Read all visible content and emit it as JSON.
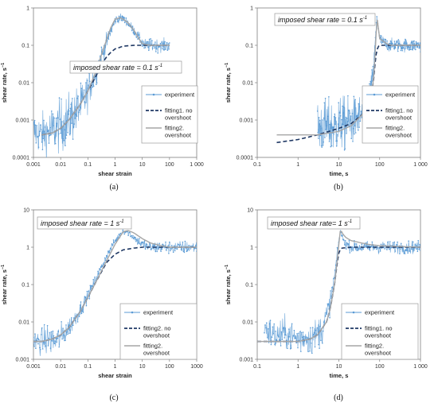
{
  "colors": {
    "experiment": "#5b9bd5",
    "fitting1": "#1f3864",
    "fitting2": "#a6a6a6"
  },
  "chart_data": [
    {
      "type": "line",
      "panel": "(a)",
      "xlabel": "shear strain",
      "ylabel": "shear rate, s",
      "ylabel_sup": "−1",
      "xscale": "log",
      "yscale": "log",
      "xlim": [
        0.001,
        1000
      ],
      "ylim": [
        0.0001,
        1
      ],
      "xticks": [
        "0.001",
        "0.01",
        "0.1",
        "1",
        "10",
        "100",
        "1 000"
      ],
      "yticks": [
        "0.0001",
        "0.001",
        "0.01",
        "0.1",
        "1"
      ],
      "annotation": "imposed  shear rate = 0.1 s",
      "annotation_sup": "-1",
      "legend": [
        "experiment",
        "fitting1. no overshoot",
        "fitting2. overshoot"
      ],
      "series": [
        {
          "name": "experiment",
          "style": "noisy",
          "x": [
            0.001,
            0.002,
            0.004,
            0.007,
            0.01,
            0.02,
            0.04,
            0.07,
            0.1,
            0.2,
            0.4,
            0.7,
            1,
            1.5,
            2,
            3,
            5,
            8,
            12,
            20,
            50,
            100
          ],
          "y": [
            0.0005,
            0.0004,
            0.0005,
            0.0006,
            0.0007,
            0.001,
            0.0018,
            0.003,
            0.006,
            0.02,
            0.08,
            0.25,
            0.45,
            0.55,
            0.5,
            0.4,
            0.25,
            0.15,
            0.1,
            0.1,
            0.1,
            0.1
          ],
          "noise": [
            0.35,
            0.4,
            0.45,
            0.45,
            0.5,
            0.5,
            0.45,
            0.4,
            0.35,
            0.25,
            0.2,
            0.12,
            0.08,
            0.08,
            0.08,
            0.08,
            0.08,
            0.1,
            0.12,
            0.12,
            0.12,
            0.12
          ]
        },
        {
          "name": "fitting1. no overshoot",
          "style": "dash",
          "x": [
            0.002,
            0.005,
            0.01,
            0.02,
            0.05,
            0.1,
            0.2,
            0.3,
            0.5,
            0.7,
            1,
            2,
            5,
            10,
            100
          ],
          "y": [
            0.0004,
            0.00045,
            0.0006,
            0.001,
            0.0025,
            0.006,
            0.015,
            0.03,
            0.05,
            0.065,
            0.08,
            0.095,
            0.1,
            0.1,
            0.1
          ]
        },
        {
          "name": "fitting2. overshoot",
          "style": "solid",
          "x": [
            0.002,
            0.005,
            0.01,
            0.02,
            0.05,
            0.1,
            0.2,
            0.3,
            0.5,
            0.7,
            1,
            1.5,
            2,
            3,
            5,
            8,
            10,
            20,
            100
          ],
          "y": [
            0.0004,
            0.00045,
            0.0006,
            0.001,
            0.0025,
            0.006,
            0.02,
            0.05,
            0.15,
            0.3,
            0.5,
            0.55,
            0.5,
            0.4,
            0.25,
            0.14,
            0.11,
            0.1,
            0.1
          ]
        }
      ]
    },
    {
      "type": "line",
      "panel": "(b)",
      "xlabel": "time, s",
      "ylabel": "shear rate, s",
      "ylabel_sup": "−1",
      "xscale": "log",
      "yscale": "log",
      "xlim": [
        0.1,
        1000
      ],
      "ylim": [
        0.0001,
        1
      ],
      "xticks": [
        "0.1",
        "1",
        "10",
        "100",
        "1 000"
      ],
      "yticks": [
        "0.0001",
        "0.001",
        "0.01",
        "0.1",
        "1"
      ],
      "annotation": "imposed shear rate = 0.1 s",
      "annotation_sup": "-1",
      "legend": [
        "experiment",
        "fitting1. no overshoot",
        "fitting2. overshoot"
      ],
      "series": [
        {
          "name": "experiment",
          "style": "noisy",
          "x": [
            3,
            5,
            8,
            10,
            15,
            20,
            30,
            40,
            50,
            60,
            70,
            80,
            85,
            90,
            100,
            150,
            200,
            300,
            500,
            1000
          ],
          "y": [
            0.0006,
            0.0007,
            0.0006,
            0.0008,
            0.0008,
            0.0009,
            0.0012,
            0.0015,
            0.003,
            0.006,
            0.02,
            0.2,
            0.5,
            0.4,
            0.15,
            0.1,
            0.1,
            0.1,
            0.1,
            0.1
          ],
          "noise": [
            0.5,
            0.5,
            0.5,
            0.5,
            0.5,
            0.45,
            0.4,
            0.35,
            0.3,
            0.25,
            0.2,
            0.1,
            0.1,
            0.1,
            0.1,
            0.12,
            0.12,
            0.12,
            0.12,
            0.12
          ]
        },
        {
          "name": "fitting1. no overshoot",
          "style": "dash",
          "x": [
            0.3,
            1,
            3,
            10,
            20,
            40,
            60,
            70,
            80,
            90,
            100,
            200,
            1000
          ],
          "y": [
            0.00025,
            0.0003,
            0.0004,
            0.0006,
            0.0008,
            0.0015,
            0.004,
            0.01,
            0.05,
            0.09,
            0.1,
            0.1,
            0.1
          ]
        },
        {
          "name": "fitting2. overshoot",
          "style": "solid",
          "x": [
            0.3,
            1,
            3,
            10,
            20,
            40,
            60,
            70,
            80,
            85,
            90,
            100,
            150,
            200,
            1000
          ],
          "y": [
            0.0004,
            0.0004,
            0.0004,
            0.0005,
            0.0007,
            0.0015,
            0.004,
            0.01,
            0.1,
            0.6,
            0.4,
            0.15,
            0.11,
            0.1,
            0.1
          ]
        }
      ]
    },
    {
      "type": "line",
      "panel": "(c)",
      "xlabel": "shear strain",
      "ylabel": "shear rate, s",
      "ylabel_sup": "−1",
      "xscale": "log",
      "yscale": "log",
      "xlim": [
        0.001,
        1000
      ],
      "ylim": [
        0.001,
        10
      ],
      "xticks": [
        "0.001",
        "0.01",
        "0.1",
        "1",
        "10",
        "100",
        "1000"
      ],
      "yticks": [
        "0.001",
        "0.01",
        "0.1",
        "1",
        "10"
      ],
      "annotation": "imposed shear rate = 1 s",
      "annotation_sup": "-1",
      "legend": [
        "experiment",
        "fitting2. no overshoot",
        "fitting2. overshoot"
      ],
      "series": [
        {
          "name": "experiment",
          "style": "noisy",
          "x": [
            0.001,
            0.002,
            0.004,
            0.006,
            0.01,
            0.02,
            0.05,
            0.1,
            0.2,
            0.5,
            1,
            2,
            3,
            5,
            10,
            20,
            50,
            100,
            1000
          ],
          "y": [
            0.003,
            0.003,
            0.0035,
            0.003,
            0.004,
            0.007,
            0.02,
            0.05,
            0.15,
            0.6,
            1.5,
            2.8,
            2.5,
            1.8,
            1.2,
            1,
            1,
            1,
            1
          ],
          "noise": [
            0.2,
            0.25,
            0.3,
            0.3,
            0.25,
            0.2,
            0.15,
            0.1,
            0.08,
            0.06,
            0.06,
            0.06,
            0.06,
            0.06,
            0.1,
            0.12,
            0.12,
            0.12,
            0.12
          ]
        },
        {
          "name": "fitting2. no overshoot",
          "style": "dash",
          "x": [
            0.001,
            0.002,
            0.005,
            0.01,
            0.02,
            0.05,
            0.1,
            0.2,
            0.5,
            1,
            2,
            5,
            10,
            100,
            1000
          ],
          "y": [
            0.003,
            0.003,
            0.0035,
            0.0045,
            0.007,
            0.018,
            0.045,
            0.12,
            0.4,
            0.65,
            0.85,
            0.95,
            1,
            1,
            1
          ]
        },
        {
          "name": "fitting2. overshoot",
          "style": "solid",
          "x": [
            0.001,
            0.002,
            0.005,
            0.01,
            0.02,
            0.05,
            0.1,
            0.2,
            0.5,
            1,
            2,
            3,
            5,
            10,
            20,
            50,
            100,
            1000
          ],
          "y": [
            0.003,
            0.003,
            0.0035,
            0.0045,
            0.007,
            0.018,
            0.045,
            0.12,
            0.45,
            1.2,
            2.6,
            2.8,
            2.4,
            1.7,
            1.3,
            1.1,
            1,
            1
          ]
        }
      ]
    },
    {
      "type": "line",
      "panel": "(d)",
      "xlabel": "time, s",
      "ylabel": "shear rate, s",
      "ylabel_sup": "−1",
      "xscale": "log",
      "yscale": "log",
      "xlim": [
        0.1,
        1000
      ],
      "ylim": [
        0.001,
        10
      ],
      "xticks": [
        "0.1",
        "1",
        "10",
        "100",
        "1 000"
      ],
      "yticks": [
        "0.001",
        "0.01",
        "0.1",
        "1",
        "10"
      ],
      "annotation": "imposed shear rate= 1 s",
      "annotation_sup": "-1",
      "legend": [
        "experiment",
        "fitting1. no overshoot",
        "fitting2. overshoot"
      ],
      "series": [
        {
          "name": "experiment",
          "style": "noisy",
          "x": [
            0.15,
            0.2,
            0.3,
            0.5,
            0.7,
            1,
            1.5,
            2,
            3,
            4,
            5,
            6,
            7,
            8,
            9,
            10,
            11,
            12,
            15,
            20,
            50,
            100,
            1000
          ],
          "y": [
            0.008,
            0.005,
            0.004,
            0.005,
            0.004,
            0.0035,
            0.004,
            0.0035,
            0.005,
            0.007,
            0.015,
            0.03,
            0.08,
            0.2,
            0.6,
            1.5,
            2.8,
            1.8,
            1.2,
            1,
            1,
            1,
            1
          ],
          "noise": [
            0.2,
            0.3,
            0.3,
            0.3,
            0.3,
            0.3,
            0.3,
            0.3,
            0.3,
            0.3,
            0.25,
            0.2,
            0.15,
            0.1,
            0.08,
            0.06,
            0.06,
            0.06,
            0.08,
            0.1,
            0.12,
            0.12,
            0.12
          ]
        },
        {
          "name": "fitting1. no overshoot",
          "style": "dash",
          "x": [
            0.1,
            0.5,
            1,
            2,
            3,
            5,
            6,
            7,
            8,
            9,
            10,
            11,
            12,
            20,
            100,
            1000
          ],
          "y": [
            0.003,
            0.003,
            0.003,
            0.0035,
            0.0045,
            0.01,
            0.02,
            0.05,
            0.12,
            0.35,
            0.7,
            0.9,
            0.95,
            1,
            1,
            1
          ]
        },
        {
          "name": "fitting2. overshoot",
          "style": "solid",
          "x": [
            0.1,
            0.5,
            1,
            2,
            3,
            5,
            6,
            7,
            8,
            9,
            10,
            11,
            12,
            15,
            20,
            50,
            100,
            1000
          ],
          "y": [
            0.003,
            0.003,
            0.003,
            0.0035,
            0.0045,
            0.01,
            0.02,
            0.05,
            0.12,
            0.4,
            1.2,
            3.2,
            2.4,
            1.8,
            1.5,
            1.2,
            1.1,
            1
          ]
        }
      ]
    }
  ]
}
